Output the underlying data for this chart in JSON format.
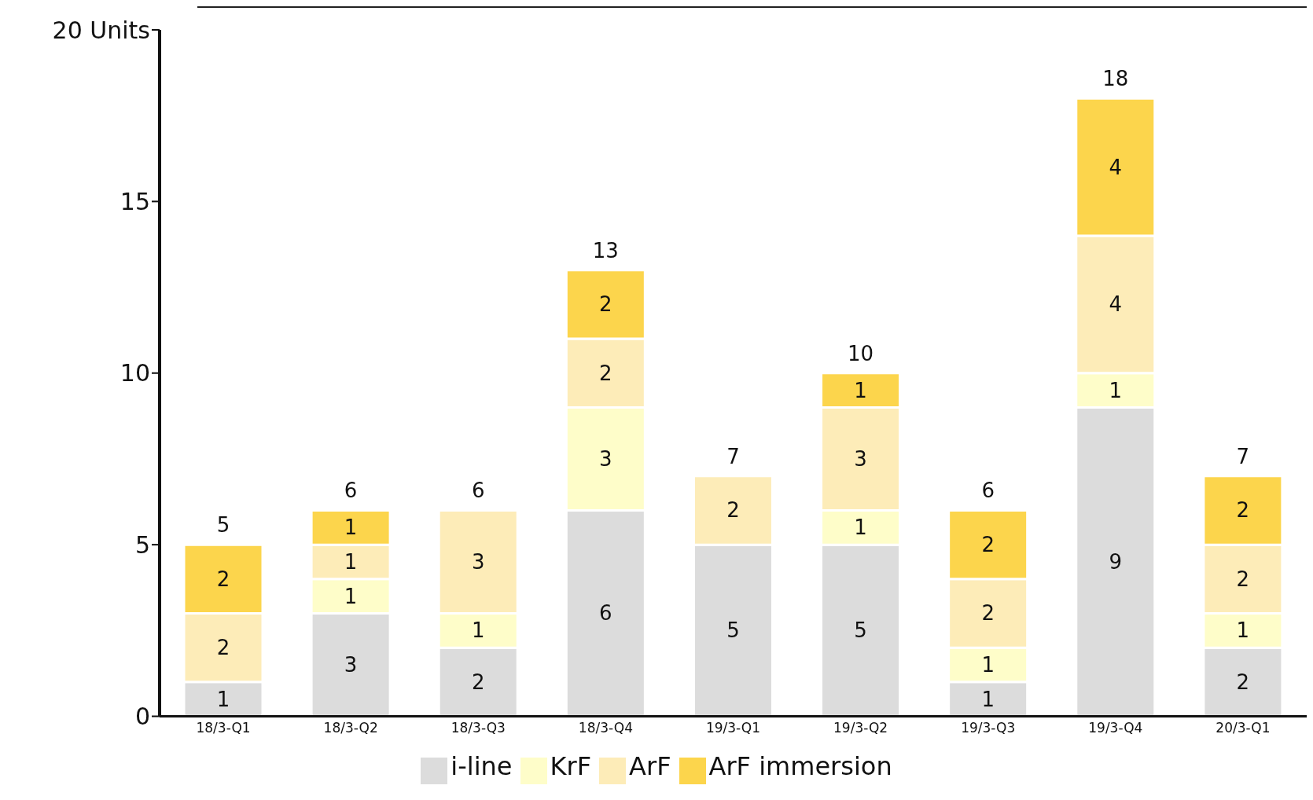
{
  "chart_data": {
    "type": "bar",
    "stacked": true,
    "categories": [
      "18/3-Q1",
      "18/3-Q2",
      "18/3-Q3",
      "18/3-Q4",
      "19/3-Q1",
      "19/3-Q2",
      "19/3-Q3",
      "19/3-Q4",
      "20/3-Q1"
    ],
    "series": [
      {
        "name": "i-line",
        "color": "#dcdcdc",
        "values": [
          1,
          3,
          2,
          6,
          5,
          5,
          1,
          9,
          2
        ]
      },
      {
        "name": "KrF",
        "color": "#fefdc9",
        "values": [
          null,
          1,
          1,
          3,
          null,
          1,
          1,
          1,
          1
        ]
      },
      {
        "name": "ArF",
        "color": "#fdecb8",
        "values": [
          2,
          1,
          3,
          2,
          2,
          3,
          2,
          4,
          2
        ]
      },
      {
        "name": "ArF immersion",
        "color": "#fcd54c",
        "values": [
          2,
          1,
          null,
          2,
          null,
          1,
          2,
          4,
          2
        ]
      }
    ],
    "ylim": [
      0,
      20
    ],
    "yticks": [
      0,
      5,
      10,
      15,
      {
        "value": 20,
        "label": "20 Units"
      }
    ],
    "data_labels": true,
    "totals": [
      "5",
      "6",
      "6",
      "13",
      "7",
      "10",
      "6",
      "18",
      "7"
    ],
    "legend": "bottom",
    "grid": false
  }
}
